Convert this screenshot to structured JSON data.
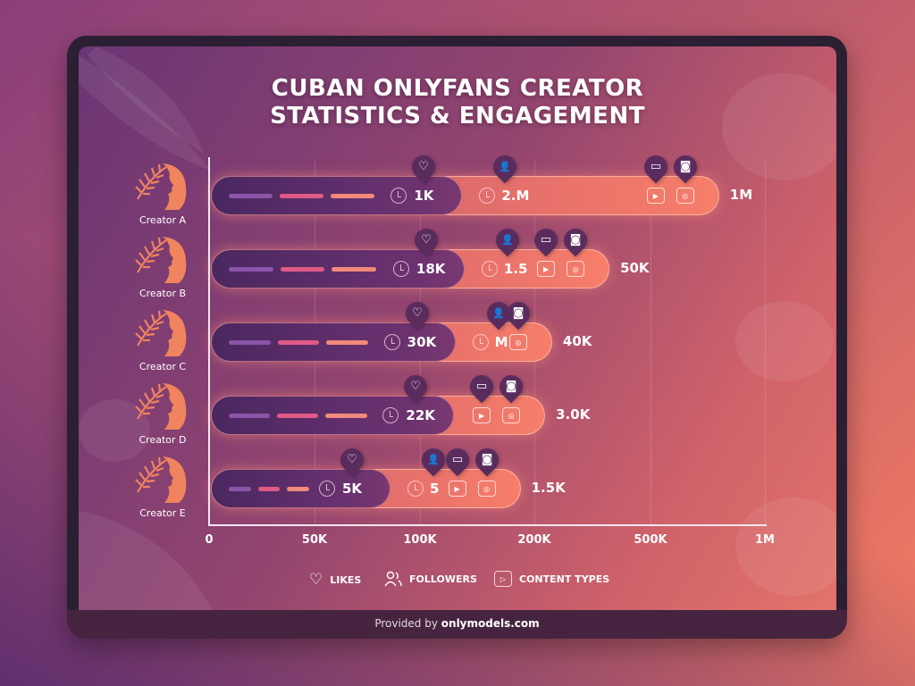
{
  "chart_data": {
    "type": "bar",
    "title_lines": [
      "CUBAN ONLYFANS CREATOR",
      "STATISTICS & ENGAGEMENT"
    ],
    "x_ticks": [
      "0",
      "50K",
      "100K",
      "200K",
      "500K",
      "1M"
    ],
    "x_tick_values": [
      0,
      50000,
      100000,
      200000,
      500000,
      1000000
    ],
    "orientation": "horizontal",
    "grid": true,
    "categories": [
      "Creator A",
      "Creator B",
      "Creator C",
      "Creator D",
      "Creator E"
    ],
    "rows": [
      {
        "name": "Creator A",
        "likes_label": "1K",
        "followers_label": "2.M",
        "end_label": "1M",
        "likes_bar": 137000,
        "total_bar": 800000,
        "followers": true,
        "video": true,
        "play": true,
        "camera": true
      },
      {
        "name": "Creator B",
        "likes_label": "18K",
        "followers_label": "1.5",
        "end_label": "50K",
        "likes_bar": 139000,
        "total_bar": 394000,
        "followers": true,
        "video": true,
        "play": true,
        "camera": true
      },
      {
        "name": "Creator C",
        "likes_label": "30K",
        "followers_label": "M",
        "end_label": "40K",
        "likes_bar": 131000,
        "total_bar": 246000,
        "followers": true,
        "video": false,
        "play": false,
        "camera": true
      },
      {
        "name": "Creator D",
        "likes_label": "22K",
        "followers_label": "",
        "end_label": "3.0K",
        "likes_bar": 130000,
        "total_bar": 228000,
        "followers": false,
        "video": true,
        "play": true,
        "camera": true
      },
      {
        "name": "Creator E",
        "likes_label": "5K",
        "followers_label": "5",
        "end_label": "1.5K",
        "likes_bar": 86000,
        "total_bar": 188000,
        "followers": true,
        "video": true,
        "play": true,
        "camera": true
      }
    ],
    "legend": [
      {
        "icon": "heart-icon",
        "label": "LIKES"
      },
      {
        "icon": "followers-icon",
        "label": "FOLLOWERS"
      },
      {
        "icon": "play-icon",
        "label": "CONTENT TYPES"
      }
    ],
    "colors": {
      "likes": "#4a2760",
      "total": "#f77e6a"
    }
  },
  "footer": {
    "prefix": "Provided by",
    "brand": "onlymodels.com"
  }
}
